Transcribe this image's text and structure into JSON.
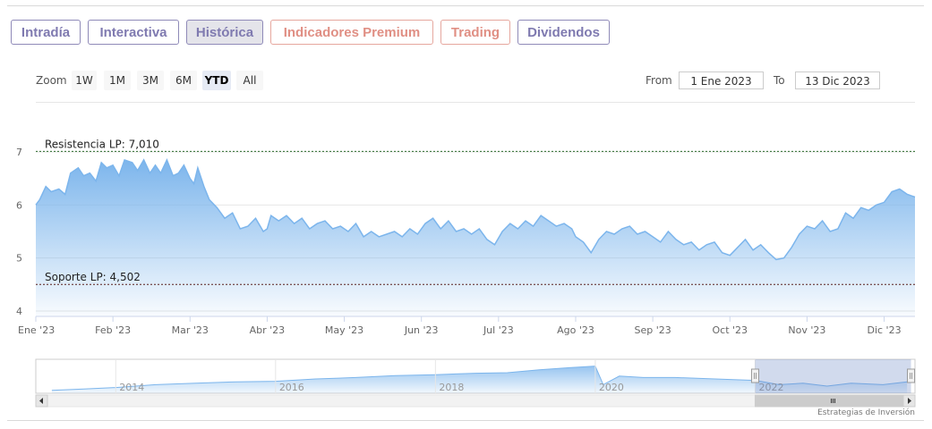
{
  "tabs": [
    {
      "label": "Intradía",
      "active": false,
      "premium": false
    },
    {
      "label": "Interactiva",
      "active": false,
      "premium": false
    },
    {
      "label": "Histórica",
      "active": true,
      "premium": false
    },
    {
      "label": "Indicadores Premium",
      "active": false,
      "premium": true
    },
    {
      "label": "Trading",
      "active": false,
      "premium": true
    },
    {
      "label": "Dividendos",
      "active": false,
      "premium": false
    }
  ],
  "zoom": {
    "label": "Zoom",
    "buttons": [
      "1W",
      "1M",
      "3M",
      "6M",
      "YTD",
      "All"
    ],
    "selected": "YTD"
  },
  "range": {
    "from_label": "From",
    "from_value": "1 Ene 2023",
    "to_label": "To",
    "to_value": "13 Dic 2023"
  },
  "credits": "Estrategias de Inversión",
  "colors": {
    "series": "#7cb5ec",
    "resistance": "#2e6b2e",
    "support": "#5a1e1e",
    "tab_border": "#8f8ab8",
    "premium_border": "#e6a79e"
  },
  "chart_data": {
    "type": "area",
    "ylim": [
      4,
      7
    ],
    "y_ticks": [
      "4",
      "5",
      "6",
      "7"
    ],
    "x_ticks": [
      "Ene '23",
      "Feb '23",
      "Mar '23",
      "Abr '23",
      "May '23",
      "Jun '23",
      "Jul '23",
      "Ago '23",
      "Sep '23",
      "Oct '23",
      "Nov '23",
      "Dic '23"
    ],
    "x_range_months": [
      0,
      11.4
    ],
    "series": [
      {
        "x": [
          0,
          0.05,
          0.13,
          0.2,
          0.3,
          0.38,
          0.45,
          0.55,
          0.62,
          0.7,
          0.78,
          0.85,
          0.92,
          1.0,
          1.08,
          1.15,
          1.25,
          1.32,
          1.4,
          1.48,
          1.55,
          1.62,
          1.7,
          1.78,
          1.85,
          1.92,
          2.0,
          2.05,
          2.1,
          2.18,
          2.25,
          2.35,
          2.45,
          2.55,
          2.65,
          2.75,
          2.85,
          2.95,
          3.0,
          3.05,
          3.15,
          3.25,
          3.35,
          3.45,
          3.55,
          3.65,
          3.75,
          3.85,
          3.95,
          4.05,
          4.15,
          4.25,
          4.35,
          4.45,
          4.55,
          4.65,
          4.75,
          4.85,
          4.95,
          5.05,
          5.15,
          5.25,
          5.35,
          5.45,
          5.55,
          5.65,
          5.75,
          5.85,
          5.95,
          6.05,
          6.15,
          6.25,
          6.35,
          6.45,
          6.55,
          6.65,
          6.75,
          6.85,
          6.95,
          7.0,
          7.1,
          7.2,
          7.3,
          7.4,
          7.5,
          7.6,
          7.7,
          7.8,
          7.9,
          8.0,
          8.1,
          8.2,
          8.3,
          8.4,
          8.5,
          8.6,
          8.7,
          8.8,
          8.9,
          9.0,
          9.1,
          9.2,
          9.3,
          9.4,
          9.5,
          9.6,
          9.7,
          9.8,
          9.9,
          10.0,
          10.1,
          10.2,
          10.3,
          10.4,
          10.5,
          10.6,
          10.7,
          10.8,
          10.9,
          11.0,
          11.1,
          11.2,
          11.3,
          11.4
        ],
        "y": [
          6.0,
          6.1,
          6.35,
          6.25,
          6.3,
          6.2,
          6.6,
          6.7,
          6.55,
          6.6,
          6.45,
          6.8,
          6.7,
          6.75,
          6.55,
          6.85,
          6.8,
          6.65,
          6.85,
          6.6,
          6.75,
          6.6,
          6.85,
          6.55,
          6.6,
          6.75,
          6.5,
          6.4,
          6.7,
          6.35,
          6.1,
          5.95,
          5.75,
          5.85,
          5.55,
          5.6,
          5.75,
          5.5,
          5.55,
          5.8,
          5.7,
          5.8,
          5.65,
          5.75,
          5.55,
          5.65,
          5.7,
          5.55,
          5.6,
          5.5,
          5.65,
          5.4,
          5.5,
          5.4,
          5.45,
          5.5,
          5.4,
          5.55,
          5.45,
          5.65,
          5.75,
          5.55,
          5.7,
          5.5,
          5.55,
          5.45,
          5.55,
          5.35,
          5.25,
          5.5,
          5.65,
          5.55,
          5.7,
          5.6,
          5.8,
          5.7,
          5.6,
          5.65,
          5.55,
          5.4,
          5.3,
          5.1,
          5.35,
          5.5,
          5.45,
          5.55,
          5.6,
          5.45,
          5.5,
          5.4,
          5.3,
          5.5,
          5.35,
          5.25,
          5.3,
          5.15,
          5.25,
          5.3,
          5.1,
          5.05,
          5.2,
          5.35,
          5.15,
          5.25,
          5.1,
          4.97,
          5.0,
          5.2,
          5.45,
          5.6,
          5.55,
          5.7,
          5.5,
          5.55,
          5.85,
          5.75,
          5.95,
          5.9,
          6.0,
          6.05,
          6.25,
          6.3,
          6.2,
          6.15
        ]
      }
    ],
    "lines": [
      {
        "label": "Resistencia LP: 7,010",
        "value": 7.01
      },
      {
        "label": "Soporte LP: 4,502",
        "value": 4.502
      }
    ],
    "grid": true,
    "navigator": {
      "labels": [
        "2014",
        "2016",
        "2018",
        "2020",
        "2022"
      ],
      "x_range_years": [
        2013.0,
        2024.0
      ],
      "y_range": [
        0,
        1
      ],
      "series_x": [
        2013.2,
        2013.6,
        2014.0,
        2014.5,
        2015.0,
        2015.5,
        2016.0,
        2016.5,
        2017.0,
        2017.5,
        2018.0,
        2018.5,
        2018.9,
        2019.3,
        2019.7,
        2020.0,
        2020.1,
        2020.3,
        2020.6,
        2021.0,
        2021.5,
        2022.0,
        2022.3,
        2022.6,
        2022.9,
        2023.2,
        2023.6,
        2023.9
      ],
      "series_y": [
        0.1,
        0.15,
        0.2,
        0.3,
        0.35,
        0.4,
        0.42,
        0.5,
        0.55,
        0.62,
        0.65,
        0.7,
        0.72,
        0.82,
        0.9,
        0.95,
        0.3,
        0.6,
        0.55,
        0.55,
        0.5,
        0.45,
        0.3,
        0.35,
        0.25,
        0.35,
        0.3,
        0.4
      ],
      "window_years": [
        2022.0,
        2023.95
      ]
    }
  }
}
